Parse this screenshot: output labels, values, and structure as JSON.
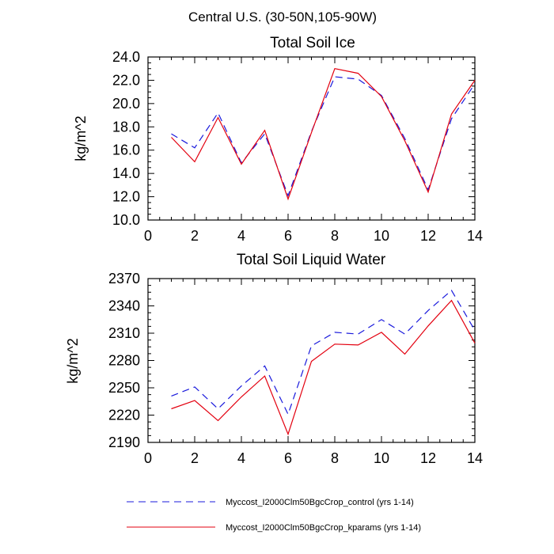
{
  "figure_title": "Central U.S. (30-50N,105-90W)",
  "colors": {
    "control": "#1a1adc",
    "kparams": "#e3000f"
  },
  "chart_data": [
    {
      "type": "line",
      "title": "Total Soil Ice",
      "xlabel": "",
      "ylabel": "kg/m^2",
      "xlim": [
        0,
        14
      ],
      "ylim": [
        10,
        24
      ],
      "x_ticks": [
        0,
        2,
        4,
        6,
        8,
        10,
        12,
        14
      ],
      "x_tick_labels": [
        "0",
        "2",
        "4",
        "6",
        "8",
        "10",
        "12",
        "14"
      ],
      "y_ticks": [
        10,
        12,
        14,
        16,
        18,
        20,
        22,
        24
      ],
      "y_tick_labels": [
        "10.0",
        "12.0",
        "14.0",
        "16.0",
        "18.0",
        "20.0",
        "22.0",
        "24.0"
      ],
      "x": [
        1,
        2,
        3,
        4,
        5,
        6,
        7,
        8,
        9,
        10,
        11,
        12,
        13,
        14
      ],
      "series": [
        {
          "name": "Myccost_I2000Clm50BgcCrop_control (yrs 1-14)",
          "style": "dashed",
          "color_key": "control",
          "values": [
            17.4,
            16.2,
            19.2,
            14.9,
            17.4,
            12.1,
            17.6,
            22.3,
            22.1,
            20.7,
            17.0,
            12.6,
            18.7,
            21.7
          ]
        },
        {
          "name": "Myccost_I2000Clm50BgcCrop_kparams (yrs 1-14)",
          "style": "solid",
          "color_key": "kparams",
          "values": [
            17.1,
            15.0,
            18.8,
            14.8,
            17.7,
            11.8,
            17.5,
            23.0,
            22.6,
            20.6,
            16.8,
            12.4,
            19.1,
            22.0
          ]
        }
      ]
    },
    {
      "type": "line",
      "title": "Total Soil Liquid Water",
      "xlabel": "",
      "ylabel": "kg/m^2",
      "xlim": [
        0,
        14
      ],
      "ylim": [
        2190,
        2370
      ],
      "x_ticks": [
        0,
        2,
        4,
        6,
        8,
        10,
        12,
        14
      ],
      "x_tick_labels": [
        "0",
        "2",
        "4",
        "6",
        "8",
        "10",
        "12",
        "14"
      ],
      "y_ticks": [
        2190,
        2220,
        2250,
        2280,
        2310,
        2340,
        2370
      ],
      "y_tick_labels": [
        "2190",
        "2220",
        "2250",
        "2280",
        "2310",
        "2340",
        "2370"
      ],
      "x": [
        1,
        2,
        3,
        4,
        5,
        6,
        7,
        8,
        9,
        10,
        11,
        12,
        13,
        14
      ],
      "series": [
        {
          "name": "Myccost_I2000Clm50BgcCrop_control (yrs 1-14)",
          "style": "dashed",
          "color_key": "control",
          "values": [
            2241,
            2251,
            2227,
            2252,
            2274,
            2221,
            2296,
            2311,
            2309,
            2325,
            2309,
            2335,
            2357,
            2313
          ]
        },
        {
          "name": "Myccost_I2000Clm50BgcCrop_kparams (yrs 1-14)",
          "style": "solid",
          "color_key": "kparams",
          "values": [
            2227,
            2236,
            2214,
            2240,
            2263,
            2199,
            2279,
            2298,
            2297,
            2311,
            2287,
            2318,
            2346,
            2299
          ]
        }
      ]
    }
  ],
  "legend": [
    {
      "label": "Myccost_I2000Clm50BgcCrop_control (yrs 1-14)",
      "style": "dashed",
      "color_key": "control"
    },
    {
      "label": "Myccost_I2000Clm50BgcCrop_kparams (yrs 1-14)",
      "style": "solid",
      "color_key": "kparams"
    }
  ]
}
